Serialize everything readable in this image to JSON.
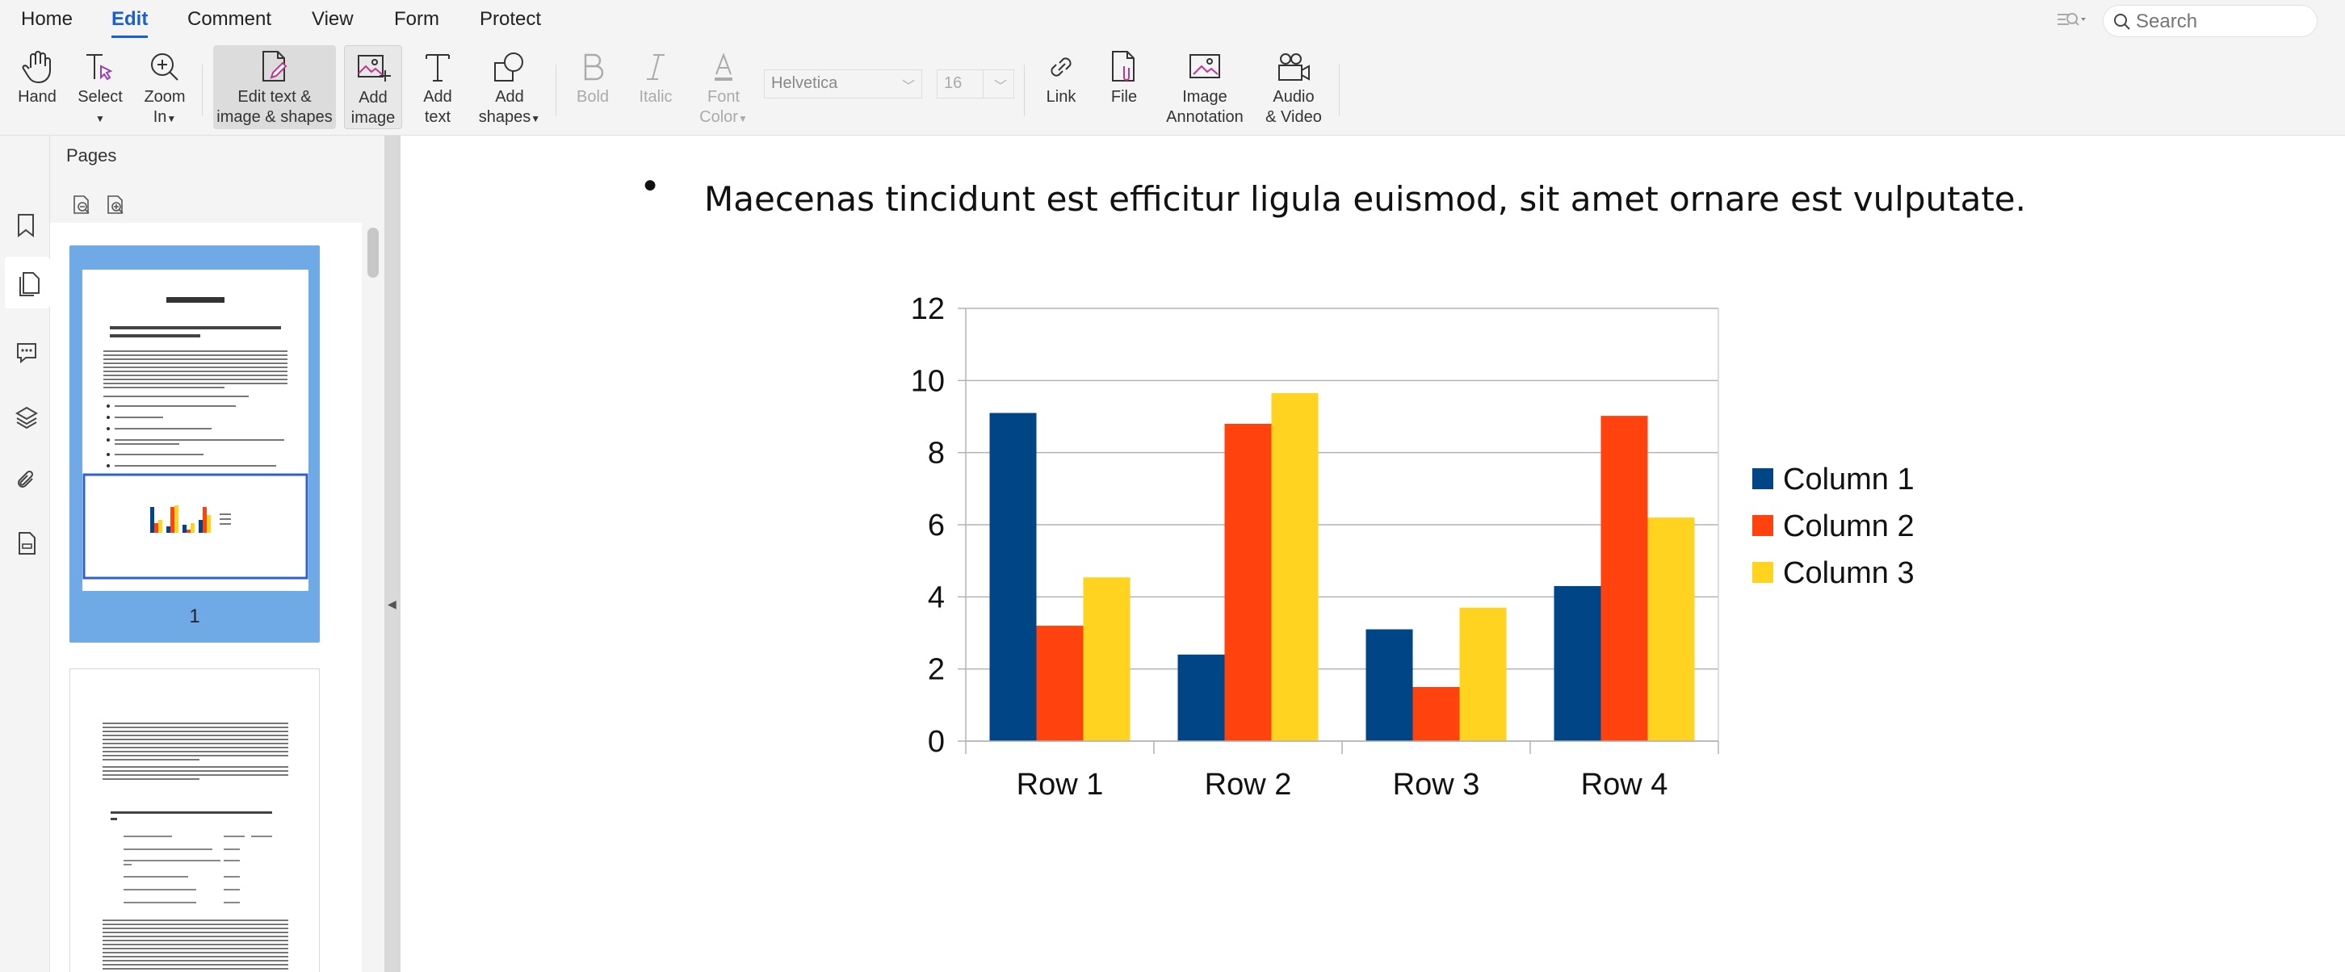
{
  "menu": {
    "items": [
      {
        "label": "Home"
      },
      {
        "label": "Edit"
      },
      {
        "label": "Comment"
      },
      {
        "label": "View"
      },
      {
        "label": "Form"
      },
      {
        "label": "Protect"
      }
    ],
    "active": "Edit",
    "search_placeholder": "Search"
  },
  "toolbar": {
    "hand": "Hand",
    "select": "Select",
    "zoom_line1": "Zoom",
    "zoom_line2": "In",
    "edit_line1": "Edit text &",
    "edit_line2": "image & shapes",
    "add_image_line1": "Add",
    "add_image_line2": "image",
    "add_text_line1": "Add",
    "add_text_line2": "text",
    "add_shapes_line1": "Add",
    "add_shapes_line2": "shapes",
    "bold": "Bold",
    "italic": "Italic",
    "font_color_line1": "Font",
    "font_color_line2": "Color",
    "font_family": "Helvetica",
    "font_size": "16",
    "link": "Link",
    "file": "File",
    "image_annotation_line1": "Image",
    "image_annotation_line2": "Annotation",
    "audio_video_line1": "Audio",
    "audio_video_line2": "& Video"
  },
  "pages_panel": {
    "title": "Pages",
    "page1_number": "1"
  },
  "document": {
    "bullet_text": "Maecenas tincidunt est efficitur ligula euismod, sit amet ornare est vulputate."
  },
  "colors": {
    "accent": "#1a5fd0",
    "thumb_selected": "#6fa9e6",
    "series1": "#004586",
    "series2": "#ff420e",
    "series3": "#ffd320"
  },
  "chart_data": {
    "type": "bar",
    "categories": [
      "Row 1",
      "Row 2",
      "Row 3",
      "Row 4"
    ],
    "series": [
      {
        "name": "Column 1",
        "color": "#004586",
        "values": [
          9.1,
          2.4,
          3.1,
          4.3
        ]
      },
      {
        "name": "Column 2",
        "color": "#ff420e",
        "values": [
          3.2,
          8.8,
          1.5,
          9.02
        ]
      },
      {
        "name": "Column 3",
        "color": "#ffd320",
        "values": [
          4.54,
          9.65,
          3.7,
          6.2
        ]
      }
    ],
    "ylim": [
      0,
      12
    ],
    "yticks": [
      "0",
      "2",
      "4",
      "6",
      "8",
      "10",
      "12"
    ],
    "grid": true,
    "legend": "right",
    "title": "",
    "xlabel": "",
    "ylabel": ""
  }
}
